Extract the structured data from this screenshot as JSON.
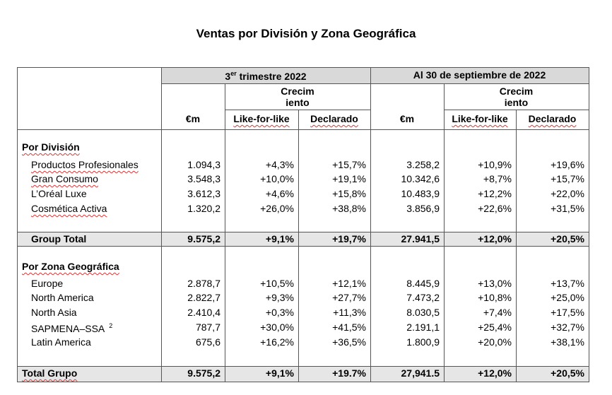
{
  "title": "Ventas por División y Zona Geográfica",
  "header": {
    "period1": {
      "pre": "3",
      "sup": "er",
      "post": "trimestre 2022"
    },
    "period2": "Al 30 de septiembre de 2022",
    "growth": [
      "Crecim",
      "iento"
    ],
    "columns": [
      "€m",
      "Like-for-like",
      "Declarado",
      "€m",
      "Like-for-like",
      "Declarado"
    ]
  },
  "sections": [
    {
      "heading": "Por División",
      "rows": [
        {
          "label": "Productos Profesionales",
          "values": [
            "1.094,3",
            "+4,3%",
            "+15,7%",
            "3.258,2",
            "+10,9%",
            "+19,6%"
          ]
        },
        {
          "label": "Gran Consumo",
          "values": [
            "3.548,3",
            "+10,0%",
            "+19,1%",
            "10.342,6",
            "+8,7%",
            "+15,7%"
          ]
        },
        {
          "label": "L’Oréal Luxe",
          "values": [
            "3.612,3",
            "+4,6%",
            "+15,8%",
            "10.483,9",
            "+12,2%",
            "+22,0%"
          ]
        },
        {
          "label": "Cosmética Activa",
          "values": [
            "1.320,2",
            "+26,0%",
            "+38,8%",
            "3.856,9",
            "+22,6%",
            "+31,5%"
          ]
        }
      ],
      "total": {
        "label": "Group Total",
        "values": [
          "9.575,2",
          "+9,1%",
          "+19,7%",
          "27.941,5",
          "+12,0%",
          "+20,5%"
        ]
      }
    },
    {
      "heading": "Por Zona Geográfica",
      "rows": [
        {
          "label": "Europe",
          "values": [
            "2.878,7",
            "+10,5%",
            "+12,1%",
            "8.445,9",
            "+13,0%",
            "+13,7%"
          ]
        },
        {
          "label": "North America",
          "values": [
            "2.822,7",
            "+9,3%",
            "+27,7%",
            "7.473,2",
            "+10,8%",
            "+25,0%"
          ]
        },
        {
          "label": "North Asia",
          "values": [
            "2.410,4",
            "+0,3%",
            "+11,3%",
            "8.030,5",
            "+7,4%",
            "+17,5%"
          ]
        },
        {
          "label": "SAPMENA–SSA",
          "note": "2",
          "values": [
            "787,7",
            "+30,0%",
            "+41,5%",
            "2.191,1",
            "+25,4%",
            "+32,7%"
          ]
        },
        {
          "label": "Latin America",
          "values": [
            "675,6",
            "+16,2%",
            "+36,5%",
            "1.800,9",
            "+20,0%",
            "+38,1%"
          ]
        }
      ],
      "total": {
        "label": "Total Grupo",
        "values": [
          "9.575,2",
          "+9,1%",
          "+19.7%",
          "27,941.5",
          "+12,0%",
          "+20,5%"
        ]
      }
    }
  ]
}
